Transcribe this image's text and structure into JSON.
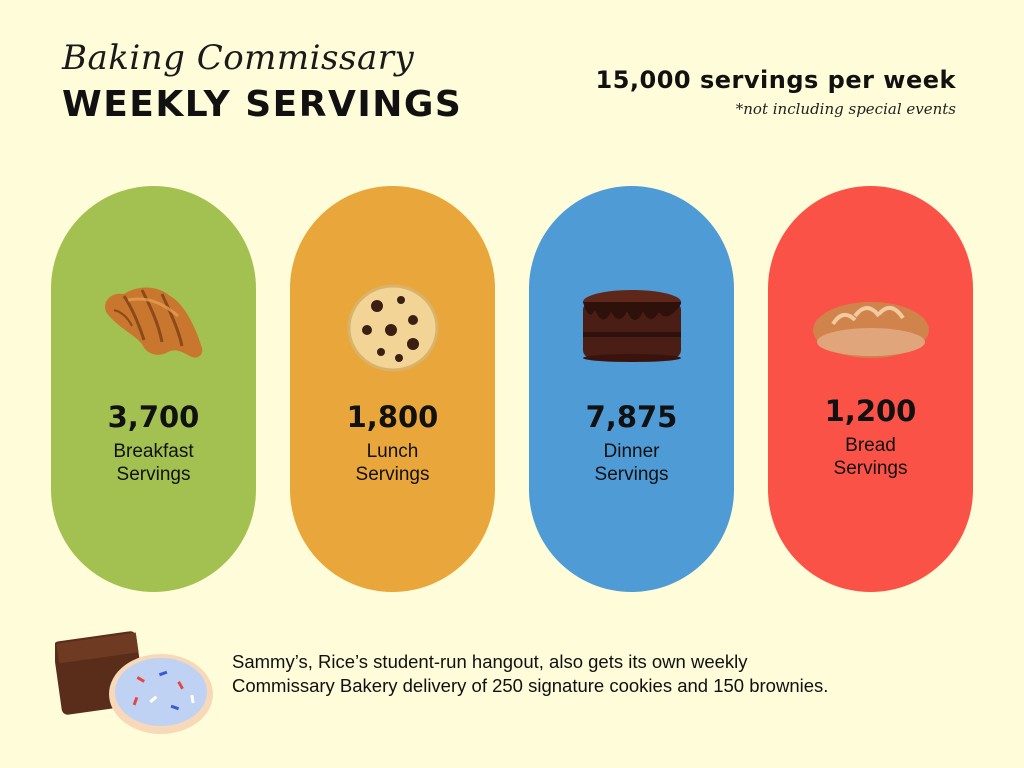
{
  "header": {
    "script_title": "Baking Commissary",
    "title": "WEEKLY SERVINGS",
    "total": "15,000 servings per week",
    "note": "*not including special events"
  },
  "cards": [
    {
      "value": "3,700",
      "label_line1": "Breakfast",
      "label_line2": "Servings",
      "color": "#A3C150",
      "icon": "croissant-icon"
    },
    {
      "value": "1,800",
      "label_line1": "Lunch",
      "label_line2": "Servings",
      "color": "#E9A63A",
      "icon": "cookie-icon"
    },
    {
      "value": "7,875",
      "label_line1": "Dinner",
      "label_line2": "Servings",
      "color": "#4F9BD6",
      "icon": "chocolate-cake-icon"
    },
    {
      "value": "1,200",
      "label_line1": "Bread",
      "label_line2": "Servings",
      "color": "#FB5248",
      "icon": "bread-loaf-icon"
    }
  ],
  "footer": {
    "line1": "Sammy’s, Rice’s student-run hangout, also gets its own weekly",
    "line2": "Commissary Bakery delivery of 250 signature cookies and 150 brownies.",
    "icon": "brownie-and-cookie-icon"
  }
}
